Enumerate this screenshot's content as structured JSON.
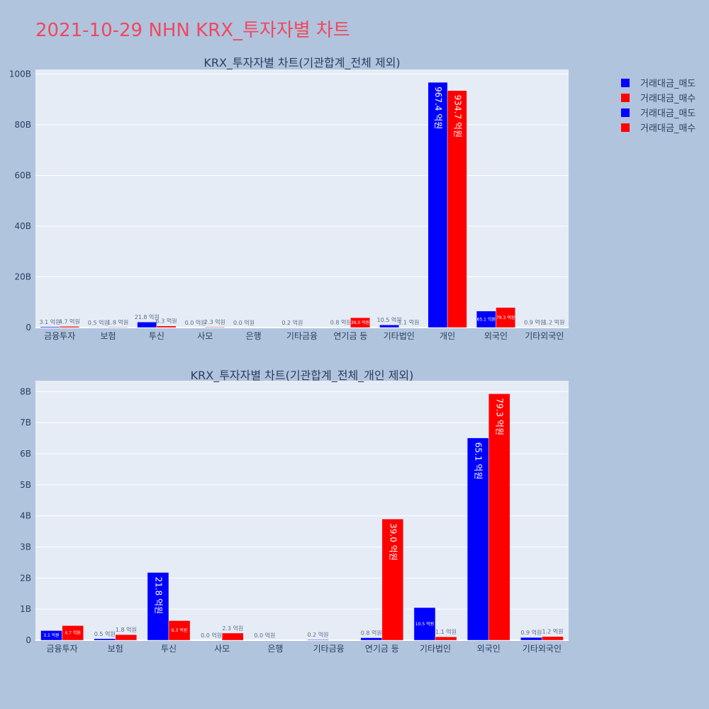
{
  "page": {
    "title": "2021-10-29 NHN KRX_투자자별 차트"
  },
  "legend": [
    {
      "label": "거래대금_매도",
      "color": "#0000ff"
    },
    {
      "label": "거래대금_매수",
      "color": "#ff0000"
    },
    {
      "label": "거래대금_매도",
      "color": "#0000ff"
    },
    {
      "label": "거래대금_매수",
      "color": "#ff0000"
    }
  ],
  "colors": {
    "sell": "#0000ff",
    "buy": "#ff0000",
    "plot_bg": "#e5ecf6",
    "page_bg": "#b0c4de"
  },
  "chart_data": [
    {
      "type": "bar",
      "title": "KRX_투자자별 차트(기관합계_전체 제외)",
      "categories": [
        "금융투자",
        "보험",
        "투신",
        "사모",
        "은행",
        "기타금융",
        "연기금 등",
        "기타법인",
        "개인",
        "외국인",
        "기타외국인"
      ],
      "series": [
        {
          "name": "거래대금_매도",
          "values": [
            0.31,
            0.05,
            2.18,
            0.0,
            0.0,
            0.02,
            0.08,
            1.05,
            96.74,
            6.51,
            0.09
          ],
          "labels": [
            "3.1 억원",
            "0.5 억원",
            "21.8 억원",
            "0.0 억원",
            "0.0 억원",
            "0.2 억원",
            "0.8 억원",
            "10.5 억원",
            "967.4 억원",
            "65.1 억원",
            "0.9 억원"
          ]
        },
        {
          "name": "거래대금_매수",
          "values": [
            0.47,
            0.18,
            0.63,
            0.23,
            0.0,
            0.0,
            3.9,
            0.11,
            93.47,
            7.93,
            0.12
          ],
          "labels": [
            "4.7 억원",
            "1.8 억원",
            "6.3 억원",
            "2.3 억원",
            "",
            "",
            "39.0 억원",
            "1.1 억원",
            "934.7 억원",
            "79.3 억원",
            "1.2 억원"
          ]
        }
      ],
      "yticks": [
        "0",
        "20B",
        "40B",
        "60B",
        "80B",
        "100B"
      ],
      "ytick_values": [
        0,
        20,
        40,
        60,
        80,
        100
      ],
      "ylim": [
        0,
        101.8
      ],
      "grid": true
    },
    {
      "type": "bar",
      "title": "KRX_투자자별 차트(기관합계_전체_개인 제외)",
      "categories": [
        "금융투자",
        "보험",
        "투신",
        "사모",
        "은행",
        "기타금융",
        "연기금 등",
        "기타법인",
        "외국인",
        "기타외국인"
      ],
      "series": [
        {
          "name": "거래대금_매도",
          "values": [
            0.31,
            0.05,
            2.18,
            0.0,
            0.0,
            0.02,
            0.08,
            1.05,
            6.51,
            0.09
          ],
          "labels": [
            "3.1 억원",
            "0.5 억원",
            "21.8 억원",
            "0.0 억원",
            "0.0 억원",
            "0.2 억원",
            "0.8 억원",
            "10.5 억원",
            "65.1 억원",
            "0.9 억원"
          ]
        },
        {
          "name": "거래대금_매수",
          "values": [
            0.47,
            0.18,
            0.63,
            0.23,
            0.0,
            0.0,
            3.9,
            0.11,
            7.93,
            0.12
          ],
          "labels": [
            "4.7 억원",
            "1.8 억원",
            "6.3 억원",
            "2.3 억원",
            "",
            "",
            "39.0 억원",
            "1.1 억원",
            "79.3 억원",
            "1.2 억원"
          ]
        }
      ],
      "yticks": [
        "0",
        "1B",
        "2B",
        "3B",
        "4B",
        "5B",
        "6B",
        "7B",
        "8B"
      ],
      "ytick_values": [
        0,
        1,
        2,
        3,
        4,
        5,
        6,
        7,
        8
      ],
      "ylim": [
        0,
        8.35
      ],
      "grid": true
    }
  ]
}
